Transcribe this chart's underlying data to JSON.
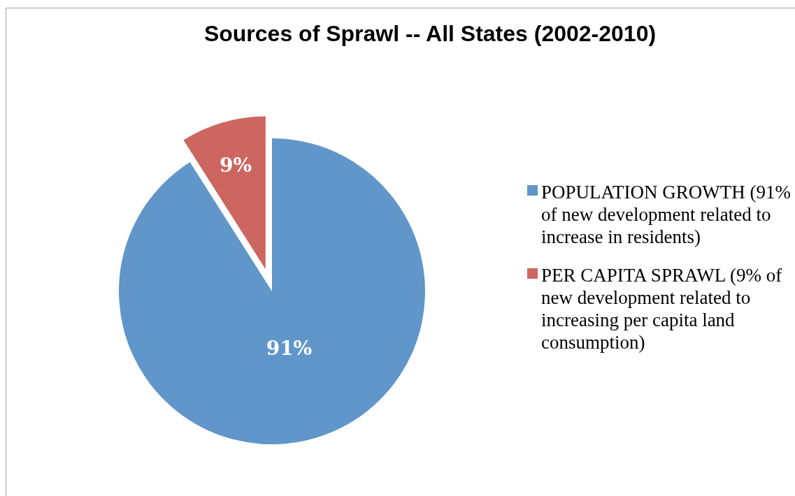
{
  "chart_data": {
    "type": "pie",
    "title": "Sources of Sprawl -- All States (2002-2010)",
    "categories": [
      "POPULATION GROWTH (91% of new development related to increase in residents)",
      "PER CAPITA SPRAWL (9% of new development related to increasing per capita land consumption)"
    ],
    "values": [
      91,
      9
    ],
    "colors": [
      "#6096ca",
      "#cd6660"
    ],
    "value_labels": [
      "91%",
      "9%"
    ],
    "legend": "right"
  }
}
